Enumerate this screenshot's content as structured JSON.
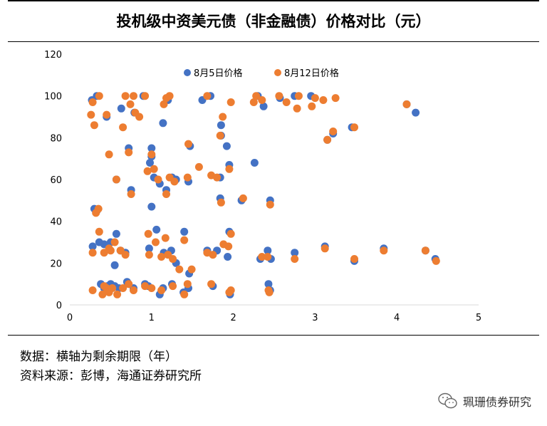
{
  "title": "投机级中资美元债（非金融债）价格对比（元）",
  "notes": {
    "line1": "数据：横轴为剩余期限（年）",
    "line2": "资料来源：彭博，海通证券研究所"
  },
  "watermark": {
    "text": "珮珊债券研究",
    "icon": "wechat-icon"
  },
  "colors": {
    "series1": "#4472C4",
    "series2": "#ED7D31",
    "axis": "#d9d9d9",
    "text": "#000000"
  },
  "chart_data": {
    "type": "scatter",
    "xlim": [
      0,
      5
    ],
    "ylim": [
      0,
      120
    ],
    "xticks": [
      "0",
      "1",
      "2",
      "3",
      "4",
      "5"
    ],
    "yticks": [
      "0",
      "20",
      "40",
      "60",
      "80",
      "100",
      "120"
    ],
    "grid": false,
    "legend_position": "top-center",
    "series": [
      {
        "name": "8月5日价格",
        "points": [
          [
            0.27,
            98
          ],
          [
            0.33,
            100
          ],
          [
            0.45,
            90
          ],
          [
            0.63,
            94
          ],
          [
            0.72,
            75
          ],
          [
            0.79,
            92
          ],
          [
            0.9,
            100
          ],
          [
            0.98,
            68
          ],
          [
            1.0,
            75
          ],
          [
            1.0,
            71
          ],
          [
            1.14,
            87
          ],
          [
            1.2,
            98
          ],
          [
            0.75,
            55
          ],
          [
            0.57,
            60
          ],
          [
            1.03,
            61
          ],
          [
            1.1,
            58
          ],
          [
            1.25,
            61
          ],
          [
            1.3,
            60
          ],
          [
            1.18,
            55
          ],
          [
            1.45,
            59
          ],
          [
            1.47,
            76
          ],
          [
            1.62,
            98
          ],
          [
            1.72,
            100
          ],
          [
            1.85,
            86
          ],
          [
            1.85,
            81
          ],
          [
            1.84,
            61
          ],
          [
            1.84,
            51
          ],
          [
            1.95,
            67
          ],
          [
            1.92,
            76
          ],
          [
            2.1,
            50
          ],
          [
            2.26,
            68
          ],
          [
            2.3,
            100
          ],
          [
            2.37,
            95
          ],
          [
            2.45,
            50
          ],
          [
            2.57,
            99
          ],
          [
            2.75,
            100
          ],
          [
            2.95,
            100
          ],
          [
            3.15,
            79
          ],
          [
            3.22,
            82
          ],
          [
            3.45,
            85
          ],
          [
            4.12,
            96
          ],
          [
            4.23,
            92
          ],
          [
            0.33,
            45
          ],
          [
            0.3,
            46
          ],
          [
            1.0,
            47
          ],
          [
            0.28,
            28
          ],
          [
            0.36,
            30
          ],
          [
            0.42,
            29
          ],
          [
            0.5,
            30
          ],
          [
            0.57,
            34
          ],
          [
            0.62,
            26
          ],
          [
            0.68,
            25
          ],
          [
            0.97,
            27
          ],
          [
            1.06,
            36
          ],
          [
            1.15,
            25
          ],
          [
            1.24,
            26
          ],
          [
            1.4,
            35
          ],
          [
            1.46,
            15
          ],
          [
            1.68,
            26
          ],
          [
            1.8,
            26
          ],
          [
            1.95,
            35
          ],
          [
            1.93,
            23
          ],
          [
            2.33,
            22
          ],
          [
            2.42,
            26
          ],
          [
            2.46,
            22
          ],
          [
            2.75,
            25
          ],
          [
            3.12,
            28
          ],
          [
            3.48,
            21
          ],
          [
            3.84,
            27
          ],
          [
            4.35,
            26
          ],
          [
            4.47,
            22
          ],
          [
            0.38,
            10
          ],
          [
            0.42,
            8
          ],
          [
            0.46,
            9
          ],
          [
            0.5,
            10
          ],
          [
            0.55,
            9
          ],
          [
            0.6,
            8
          ],
          [
            0.7,
            11
          ],
          [
            0.78,
            8
          ],
          [
            0.92,
            10
          ],
          [
            0.96,
            9
          ],
          [
            1.1,
            5
          ],
          [
            1.14,
            8
          ],
          [
            1.25,
            10
          ],
          [
            1.3,
            20
          ],
          [
            1.39,
            6
          ],
          [
            1.45,
            8
          ],
          [
            1.75,
            9
          ],
          [
            1.96,
            5
          ],
          [
            2.43,
            10
          ],
          [
            2.45,
            7
          ],
          [
            0.55,
            19
          ]
        ]
      },
      {
        "name": "8月12日价格",
        "points": [
          [
            0.26,
            91
          ],
          [
            0.3,
            86
          ],
          [
            0.28,
            97
          ],
          [
            0.36,
            100
          ],
          [
            0.45,
            91
          ],
          [
            0.48,
            72
          ],
          [
            0.65,
            85
          ],
          [
            0.68,
            100
          ],
          [
            0.74,
            96
          ],
          [
            0.78,
            100
          ],
          [
            0.8,
            92
          ],
          [
            0.85,
            90
          ],
          [
            0.92,
            100
          ],
          [
            1.0,
            72
          ],
          [
            1.03,
            65
          ],
          [
            0.95,
            64
          ],
          [
            1.15,
            96
          ],
          [
            1.18,
            99
          ],
          [
            1.22,
            100
          ],
          [
            0.72,
            73
          ],
          [
            0.75,
            53
          ],
          [
            0.57,
            60
          ],
          [
            1.08,
            60
          ],
          [
            1.18,
            53
          ],
          [
            1.22,
            61
          ],
          [
            1.28,
            59
          ],
          [
            1.44,
            61
          ],
          [
            1.45,
            77
          ],
          [
            1.58,
            66
          ],
          [
            1.68,
            100
          ],
          [
            1.73,
            62
          ],
          [
            1.8,
            61
          ],
          [
            1.84,
            81
          ],
          [
            1.85,
            49
          ],
          [
            1.87,
            90
          ],
          [
            1.95,
            65
          ],
          [
            1.97,
            97
          ],
          [
            2.12,
            51
          ],
          [
            2.25,
            97
          ],
          [
            2.28,
            100
          ],
          [
            2.35,
            98
          ],
          [
            2.45,
            48
          ],
          [
            2.56,
            100
          ],
          [
            2.65,
            97
          ],
          [
            2.78,
            94
          ],
          [
            2.8,
            100
          ],
          [
            2.96,
            95
          ],
          [
            3.0,
            99
          ],
          [
            3.1,
            98
          ],
          [
            3.15,
            79
          ],
          [
            3.25,
            99
          ],
          [
            3.22,
            83
          ],
          [
            3.48,
            85
          ],
          [
            4.12,
            96
          ],
          [
            0.32,
            44
          ],
          [
            0.35,
            46
          ],
          [
            0.28,
            25
          ],
          [
            0.36,
            35
          ],
          [
            0.42,
            25
          ],
          [
            0.48,
            27
          ],
          [
            0.5,
            26
          ],
          [
            0.55,
            30
          ],
          [
            0.62,
            26
          ],
          [
            0.68,
            24
          ],
          [
            0.96,
            34
          ],
          [
            0.97,
            24
          ],
          [
            1.05,
            30
          ],
          [
            1.12,
            23
          ],
          [
            1.17,
            32
          ],
          [
            1.2,
            24
          ],
          [
            1.26,
            22
          ],
          [
            1.4,
            31
          ],
          [
            1.49,
            17
          ],
          [
            1.68,
            25
          ],
          [
            1.75,
            24
          ],
          [
            1.88,
            29
          ],
          [
            1.94,
            28
          ],
          [
            1.97,
            34
          ],
          [
            2.35,
            23
          ],
          [
            2.42,
            23
          ],
          [
            2.75,
            22
          ],
          [
            3.12,
            27
          ],
          [
            3.48,
            22
          ],
          [
            3.84,
            26
          ],
          [
            4.35,
            26
          ],
          [
            4.48,
            21
          ],
          [
            0.28,
            7
          ],
          [
            0.4,
            5
          ],
          [
            0.42,
            9
          ],
          [
            0.45,
            8
          ],
          [
            0.48,
            6
          ],
          [
            0.52,
            8
          ],
          [
            0.58,
            5
          ],
          [
            0.65,
            8
          ],
          [
            0.72,
            10
          ],
          [
            0.78,
            7
          ],
          [
            0.92,
            9
          ],
          [
            1.0,
            8
          ],
          [
            1.12,
            7
          ],
          [
            1.26,
            9
          ],
          [
            1.34,
            17
          ],
          [
            1.4,
            5
          ],
          [
            1.44,
            10
          ],
          [
            1.73,
            10
          ],
          [
            1.95,
            6
          ],
          [
            1.97,
            7
          ],
          [
            2.43,
            7
          ],
          [
            2.44,
            6
          ]
        ]
      }
    ]
  }
}
